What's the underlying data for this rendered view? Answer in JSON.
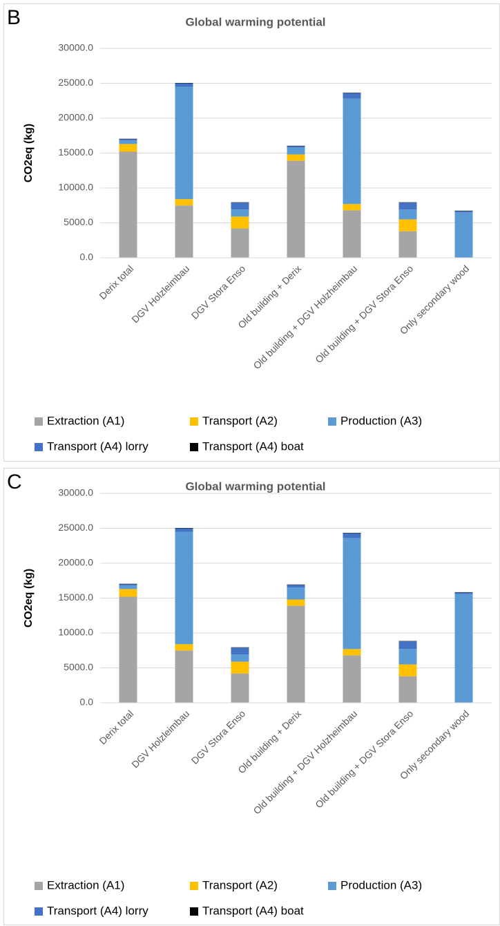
{
  "chart_data": [
    {
      "type": "bar",
      "stacked": true,
      "panel_label": "B",
      "title": "Global warming potential",
      "y_label": "CO2eq (kg)",
      "categories": [
        "Derix total",
        "DGV Holzleimbau",
        "DGV Stora Enso",
        "Old building + Derix",
        "Old building + DGV Holzheimbau",
        "Old building + DGV Stora Enso",
        "Only secondary wood"
      ],
      "series": [
        {
          "name": "Extraction (A1)",
          "color": "#a5a5a5",
          "values": [
            15200,
            7500,
            4200,
            13900,
            6800,
            3800,
            0
          ]
        },
        {
          "name": "Transport (A2)",
          "color": "#ffc000",
          "values": [
            1100,
            900,
            1700,
            900,
            900,
            1700,
            0
          ]
        },
        {
          "name": "Production (A3)",
          "color": "#5b9bd5",
          "values": [
            500,
            16100,
            1000,
            1000,
            15100,
            1400,
            6500
          ]
        },
        {
          "name": "Transport (A4) lorry",
          "color": "#4472c4",
          "values": [
            200,
            500,
            1000,
            200,
            800,
            1000,
            200
          ]
        },
        {
          "name": "Transport (A4) boat",
          "color": "#000000",
          "values": [
            50,
            50,
            50,
            50,
            50,
            50,
            50
          ]
        }
      ],
      "ylim": [
        0,
        30000
      ],
      "yticks": [
        {
          "value": 0,
          "label": "0.0"
        },
        {
          "value": 5000,
          "label": "5000.0"
        },
        {
          "value": 10000,
          "label": "10000.0"
        },
        {
          "value": 15000,
          "label": "15000.0"
        },
        {
          "value": 20000,
          "label": "20000.0"
        },
        {
          "value": 25000,
          "label": "25000.0"
        },
        {
          "value": 30000,
          "label": "30000.0"
        }
      ],
      "grid": true
    },
    {
      "type": "bar",
      "stacked": true,
      "panel_label": "C",
      "title": "Global warming potential",
      "y_label": "CO2eq (kg)",
      "categories": [
        "Derix total",
        "DGV Holzleimbau",
        "DGV Stora Enso",
        "Old building + Derix",
        "Old building + DGV Holzheimbau",
        "Old building + DGV Stora Enso",
        "Only secondary wood"
      ],
      "series": [
        {
          "name": "Extraction (A1)",
          "color": "#a5a5a5",
          "values": [
            15200,
            7500,
            4200,
            13900,
            6800,
            3800,
            0
          ]
        },
        {
          "name": "Transport (A2)",
          "color": "#ffc000",
          "values": [
            1100,
            900,
            1700,
            900,
            900,
            1700,
            0
          ]
        },
        {
          "name": "Production (A3)",
          "color": "#5b9bd5",
          "values": [
            500,
            16100,
            1000,
            1700,
            15900,
            2200,
            15600
          ]
        },
        {
          "name": "Transport (A4) lorry",
          "color": "#4472c4",
          "values": [
            200,
            500,
            1000,
            400,
            700,
            1100,
            200
          ]
        },
        {
          "name": "Transport (A4) boat",
          "color": "#000000",
          "values": [
            50,
            50,
            50,
            50,
            50,
            50,
            50
          ]
        }
      ],
      "ylim": [
        0,
        30000
      ],
      "yticks": [
        {
          "value": 0,
          "label": "0.0"
        },
        {
          "value": 5000,
          "label": "5000.0"
        },
        {
          "value": 10000,
          "label": "10000.0"
        },
        {
          "value": 15000,
          "label": "15000.0"
        },
        {
          "value": 20000,
          "label": "20000.0"
        },
        {
          "value": 25000,
          "label": "25000.0"
        },
        {
          "value": 30000,
          "label": "30000.0"
        }
      ],
      "grid": true
    }
  ]
}
